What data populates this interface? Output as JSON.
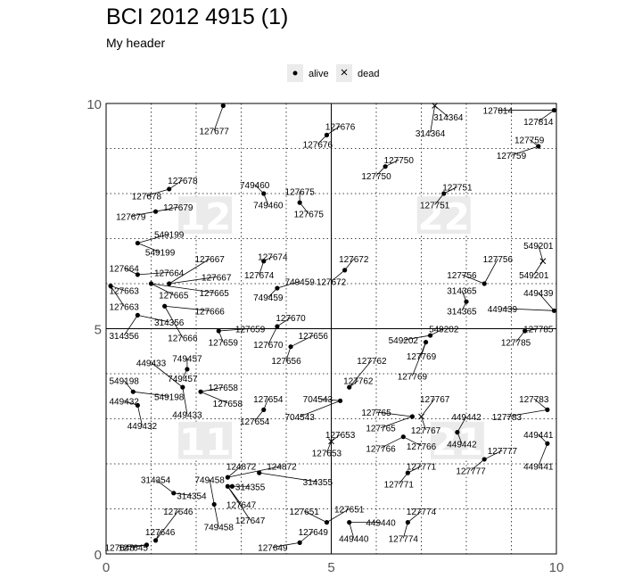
{
  "title": "BCI 2012 4915 (1)",
  "subtitle": "My header",
  "legend": [
    {
      "label": "alive",
      "symbol": "dot"
    },
    {
      "label": "dead",
      "symbol": "cross"
    }
  ],
  "chart_data": {
    "type": "scatter",
    "title": "BCI 2012 4915 (1)",
    "subtitle": "My header",
    "xlim": [
      0,
      10
    ],
    "ylim": [
      0,
      10
    ],
    "xticks": [
      "0",
      "5",
      "10"
    ],
    "yticks": [
      "0",
      "5",
      "10"
    ],
    "grid": "dotted, step 1",
    "quadrant_labels": [
      {
        "text": "12",
        "x": 2.2,
        "y": 7.5
      },
      {
        "text": "22",
        "x": 7.5,
        "y": 7.5
      },
      {
        "text": "11",
        "x": 2.2,
        "y": 2.5
      },
      {
        "text": "21",
        "x": 7.8,
        "y": 2.5
      }
    ],
    "points": [
      {
        "tag": "127677",
        "x": 2.6,
        "y": 9.95,
        "status": "alive",
        "lx": 2.4,
        "ly": 9.4
      },
      {
        "tag": "127676",
        "x": 4.9,
        "y": 9.3,
        "status": "alive",
        "lx": 5.2,
        "ly": 9.5
      },
      {
        "tag": "127676",
        "x": 4.9,
        "y": 9.3,
        "status": "alive",
        "lx": 4.7,
        "ly": 9.1
      },
      {
        "tag": "314364",
        "x": 7.3,
        "y": 9.95,
        "status": "dead",
        "lx": 7.6,
        "ly": 9.7
      },
      {
        "tag": "314364",
        "x": 7.3,
        "y": 9.95,
        "status": "dead",
        "lx": 7.2,
        "ly": 9.35
      },
      {
        "tag": "127814",
        "x": 9.95,
        "y": 9.85,
        "status": "alive",
        "lx": 8.7,
        "ly": 9.85
      },
      {
        "tag": "127814",
        "x": 9.95,
        "y": 9.85,
        "status": "alive",
        "lx": 9.6,
        "ly": 9.6
      },
      {
        "tag": "127759",
        "x": 9.6,
        "y": 9.05,
        "status": "alive",
        "lx": 9.4,
        "ly": 9.2
      },
      {
        "tag": "127759",
        "x": 9.6,
        "y": 9.05,
        "status": "alive",
        "lx": 9.0,
        "ly": 8.85
      },
      {
        "tag": "127750",
        "x": 6.2,
        "y": 8.6,
        "status": "alive",
        "lx": 6.5,
        "ly": 8.75
      },
      {
        "tag": "127750",
        "x": 6.2,
        "y": 8.6,
        "status": "alive",
        "lx": 6.0,
        "ly": 8.4
      },
      {
        "tag": "127751",
        "x": 7.5,
        "y": 8.0,
        "status": "alive",
        "lx": 7.8,
        "ly": 8.15
      },
      {
        "tag": "127751",
        "x": 7.5,
        "y": 8.0,
        "status": "alive",
        "lx": 7.3,
        "ly": 7.75
      },
      {
        "tag": "127678",
        "x": 1.4,
        "y": 8.1,
        "status": "alive",
        "lx": 1.7,
        "ly": 8.3
      },
      {
        "tag": "127678",
        "x": 1.4,
        "y": 8.1,
        "status": "alive",
        "lx": 0.9,
        "ly": 7.95
      },
      {
        "tag": "749460",
        "x": 3.5,
        "y": 8.0,
        "status": "alive",
        "lx": 3.3,
        "ly": 8.2
      },
      {
        "tag": "749460",
        "x": 3.5,
        "y": 8.0,
        "status": "alive",
        "lx": 3.6,
        "ly": 7.75
      },
      {
        "tag": "127675",
        "x": 4.3,
        "y": 7.8,
        "status": "alive",
        "lx": 4.3,
        "ly": 8.05
      },
      {
        "tag": "127675",
        "x": 4.3,
        "y": 7.8,
        "status": "alive",
        "lx": 4.5,
        "ly": 7.55
      },
      {
        "tag": "127679",
        "x": 1.1,
        "y": 7.6,
        "status": "alive",
        "lx": 1.6,
        "ly": 7.7
      },
      {
        "tag": "127679",
        "x": 1.1,
        "y": 7.6,
        "status": "alive",
        "lx": 0.55,
        "ly": 7.5
      },
      {
        "tag": "549199",
        "x": 0.7,
        "y": 6.9,
        "status": "alive",
        "lx": 1.4,
        "ly": 7.1
      },
      {
        "tag": "549199",
        "x": 0.7,
        "y": 6.9,
        "status": "alive",
        "lx": 1.2,
        "ly": 6.7
      },
      {
        "tag": "127667",
        "x": 1.4,
        "y": 6.0,
        "status": "alive",
        "lx": 2.3,
        "ly": 6.55
      },
      {
        "tag": "127667",
        "x": 1.4,
        "y": 6.0,
        "status": "alive",
        "lx": 2.45,
        "ly": 6.15
      },
      {
        "tag": "127664",
        "x": 0.7,
        "y": 6.2,
        "status": "alive",
        "lx": 0.4,
        "ly": 6.35
      },
      {
        "tag": "127664",
        "x": 0.7,
        "y": 6.2,
        "status": "alive",
        "lx": 1.4,
        "ly": 6.25
      },
      {
        "tag": "127663",
        "x": 0.1,
        "y": 5.95,
        "status": "alive",
        "lx": 0.4,
        "ly": 5.85
      },
      {
        "tag": "127663",
        "x": 0.1,
        "y": 5.95,
        "status": "alive",
        "lx": 0.4,
        "ly": 5.5
      },
      {
        "tag": "127665",
        "x": 1.0,
        "y": 6.0,
        "status": "alive",
        "lx": 1.5,
        "ly": 5.75
      },
      {
        "tag": "127665",
        "x": 1.0,
        "y": 6.0,
        "status": "alive",
        "lx": 2.4,
        "ly": 5.8
      },
      {
        "tag": "127674",
        "x": 3.5,
        "y": 6.5,
        "status": "alive",
        "lx": 3.7,
        "ly": 6.6
      },
      {
        "tag": "127674",
        "x": 3.5,
        "y": 6.5,
        "status": "alive",
        "lx": 3.4,
        "ly": 6.2
      },
      {
        "tag": "749459",
        "x": 3.8,
        "y": 5.9,
        "status": "alive",
        "lx": 4.3,
        "ly": 6.05
      },
      {
        "tag": "749459",
        "x": 3.8,
        "y": 5.9,
        "status": "alive",
        "lx": 3.6,
        "ly": 5.7
      },
      {
        "tag": "127672",
        "x": 5.3,
        "y": 6.3,
        "status": "alive",
        "lx": 5.5,
        "ly": 6.55
      },
      {
        "tag": "127672",
        "x": 5.3,
        "y": 6.3,
        "status": "alive",
        "lx": 5.0,
        "ly": 6.05
      },
      {
        "tag": "127666",
        "x": 1.3,
        "y": 5.5,
        "status": "alive",
        "lx": 2.3,
        "ly": 5.4
      },
      {
        "tag": "127666",
        "x": 1.3,
        "y": 5.5,
        "status": "alive",
        "lx": 1.7,
        "ly": 4.8
      },
      {
        "tag": "314356",
        "x": 0.7,
        "y": 5.3,
        "status": "alive",
        "lx": 1.4,
        "ly": 5.15
      },
      {
        "tag": "314356",
        "x": 0.7,
        "y": 5.3,
        "status": "alive",
        "lx": 0.4,
        "ly": 4.85
      },
      {
        "tag": "127670",
        "x": 3.8,
        "y": 5.05,
        "status": "alive",
        "lx": 4.1,
        "ly": 5.25
      },
      {
        "tag": "127670",
        "x": 3.8,
        "y": 5.05,
        "status": "alive",
        "lx": 3.6,
        "ly": 4.65
      },
      {
        "tag": "127659",
        "x": 2.5,
        "y": 4.95,
        "status": "alive",
        "lx": 3.2,
        "ly": 5.0
      },
      {
        "tag": "127659",
        "x": 2.5,
        "y": 4.95,
        "status": "alive",
        "lx": 2.6,
        "ly": 4.7
      },
      {
        "tag": "127656",
        "x": 4.1,
        "y": 4.6,
        "status": "alive",
        "lx": 4.6,
        "ly": 4.85
      },
      {
        "tag": "127656",
        "x": 4.1,
        "y": 4.6,
        "status": "alive",
        "lx": 4.0,
        "ly": 4.3
      },
      {
        "tag": "127756",
        "x": 8.4,
        "y": 6.0,
        "status": "alive",
        "lx": 8.7,
        "ly": 6.55
      },
      {
        "tag": "127756",
        "x": 8.4,
        "y": 6.0,
        "status": "alive",
        "lx": 7.9,
        "ly": 6.2
      },
      {
        "tag": "549201",
        "x": 9.7,
        "y": 6.5,
        "status": "dead",
        "lx": 9.6,
        "ly": 6.85
      },
      {
        "tag": "549201",
        "x": 9.7,
        "y": 6.5,
        "status": "dead",
        "lx": 9.5,
        "ly": 6.2
      },
      {
        "tag": "314365",
        "x": 8.0,
        "y": 5.6,
        "status": "alive",
        "lx": 7.9,
        "ly": 5.85
      },
      {
        "tag": "314365",
        "x": 8.0,
        "y": 5.6,
        "status": "alive",
        "lx": 7.9,
        "ly": 5.4
      },
      {
        "tag": "449439",
        "x": 9.95,
        "y": 5.4,
        "status": "alive",
        "lx": 9.6,
        "ly": 5.8
      },
      {
        "tag": "449439",
        "x": 9.95,
        "y": 5.4,
        "status": "alive",
        "lx": 8.8,
        "ly": 5.45
      },
      {
        "tag": "549202",
        "x": 7.2,
        "y": 4.85,
        "status": "alive",
        "lx": 7.5,
        "ly": 5.0
      },
      {
        "tag": "549202",
        "x": 7.2,
        "y": 4.85,
        "status": "alive",
        "lx": 6.6,
        "ly": 4.75
      },
      {
        "tag": "127785",
        "x": 9.3,
        "y": 4.95,
        "status": "alive",
        "lx": 9.6,
        "ly": 5.0
      },
      {
        "tag": "127785",
        "x": 9.3,
        "y": 4.95,
        "status": "alive",
        "lx": 9.1,
        "ly": 4.7
      },
      {
        "tag": "127769",
        "x": 7.1,
        "y": 4.7,
        "status": "alive",
        "lx": 7.0,
        "ly": 4.4
      },
      {
        "tag": "127769",
        "x": 7.1,
        "y": 4.7,
        "status": "alive",
        "lx": 6.8,
        "ly": 3.95
      },
      {
        "tag": "127762",
        "x": 5.4,
        "y": 3.7,
        "status": "alive",
        "lx": 5.9,
        "ly": 4.3
      },
      {
        "tag": "127762",
        "x": 5.4,
        "y": 3.7,
        "status": "alive",
        "lx": 5.6,
        "ly": 3.85
      },
      {
        "tag": "704543",
        "x": 5.2,
        "y": 3.4,
        "status": "alive",
        "lx": 4.7,
        "ly": 3.45
      },
      {
        "tag": "704543",
        "x": 5.2,
        "y": 3.4,
        "status": "alive",
        "lx": 4.3,
        "ly": 3.05
      },
      {
        "tag": "127767",
        "x": 7.0,
        "y": 3.05,
        "status": "dead",
        "lx": 7.3,
        "ly": 3.45
      },
      {
        "tag": "127767",
        "x": 7.0,
        "y": 3.05,
        "status": "dead",
        "lx": 7.1,
        "ly": 2.75
      },
      {
        "tag": "127765",
        "x": 6.8,
        "y": 3.05,
        "status": "alive",
        "lx": 6.0,
        "ly": 3.15
      },
      {
        "tag": "127765",
        "x": 6.8,
        "y": 3.05,
        "status": "alive",
        "lx": 6.1,
        "ly": 2.8
      },
      {
        "tag": "127766",
        "x": 6.6,
        "y": 2.6,
        "status": "alive",
        "lx": 6.1,
        "ly": 2.35
      },
      {
        "tag": "127766",
        "x": 6.6,
        "y": 2.6,
        "status": "alive",
        "lx": 7.0,
        "ly": 2.4
      },
      {
        "tag": "449442",
        "x": 7.8,
        "y": 2.7,
        "status": "alive",
        "lx": 8.0,
        "ly": 3.05
      },
      {
        "tag": "449442",
        "x": 7.8,
        "y": 2.7,
        "status": "alive",
        "lx": 7.9,
        "ly": 2.45
      },
      {
        "tag": "127783",
        "x": 9.8,
        "y": 3.2,
        "status": "alive",
        "lx": 9.5,
        "ly": 3.45
      },
      {
        "tag": "127783",
        "x": 9.8,
        "y": 3.2,
        "status": "alive",
        "lx": 8.9,
        "ly": 3.05
      },
      {
        "tag": "449441",
        "x": 9.8,
        "y": 2.45,
        "status": "alive",
        "lx": 9.6,
        "ly": 2.65
      },
      {
        "tag": "449441",
        "x": 9.8,
        "y": 2.45,
        "status": "alive",
        "lx": 9.6,
        "ly": 1.95
      },
      {
        "tag": "127777",
        "x": 8.4,
        "y": 2.1,
        "status": "alive",
        "lx": 8.8,
        "ly": 2.3
      },
      {
        "tag": "127777",
        "x": 8.4,
        "y": 2.1,
        "status": "alive",
        "lx": 8.1,
        "ly": 1.85
      },
      {
        "tag": "127771",
        "x": 6.7,
        "y": 1.8,
        "status": "alive",
        "lx": 7.0,
        "ly": 1.95
      },
      {
        "tag": "127771",
        "x": 6.7,
        "y": 1.8,
        "status": "alive",
        "lx": 6.5,
        "ly": 1.55
      },
      {
        "tag": "127653",
        "x": 5.0,
        "y": 2.5,
        "status": "dead",
        "lx": 5.2,
        "ly": 2.65
      },
      {
        "tag": "127653",
        "x": 5.0,
        "y": 2.5,
        "status": "dead",
        "lx": 4.9,
        "ly": 2.25
      },
      {
        "tag": "127658",
        "x": 2.1,
        "y": 3.6,
        "status": "alive",
        "lx": 2.6,
        "ly": 3.7
      },
      {
        "tag": "127658",
        "x": 2.1,
        "y": 3.6,
        "status": "alive",
        "lx": 2.7,
        "ly": 3.35
      },
      {
        "tag": "127654",
        "x": 3.5,
        "y": 3.2,
        "status": "alive",
        "lx": 3.6,
        "ly": 3.45
      },
      {
        "tag": "127654",
        "x": 3.5,
        "y": 3.2,
        "status": "alive",
        "lx": 3.3,
        "ly": 2.95
      },
      {
        "tag": "549198",
        "x": 0.6,
        "y": 3.6,
        "status": "alive",
        "lx": 0.4,
        "ly": 3.85
      },
      {
        "tag": "549198",
        "x": 0.6,
        "y": 3.6,
        "status": "alive",
        "lx": 1.4,
        "ly": 3.5
      },
      {
        "tag": "749457",
        "x": 1.8,
        "y": 4.1,
        "status": "alive",
        "lx": 1.8,
        "ly": 4.35
      },
      {
        "tag": "749457",
        "x": 1.8,
        "y": 4.1,
        "status": "alive",
        "lx": 1.7,
        "ly": 3.9
      },
      {
        "tag": "449433",
        "x": 1.7,
        "y": 3.7,
        "status": "alive",
        "lx": 1.0,
        "ly": 4.25
      },
      {
        "tag": "449433",
        "x": 1.7,
        "y": 3.7,
        "status": "alive",
        "lx": 1.8,
        "ly": 3.1
      },
      {
        "tag": "449432",
        "x": 0.7,
        "y": 3.3,
        "status": "alive",
        "lx": 0.4,
        "ly": 3.4
      },
      {
        "tag": "449432",
        "x": 0.7,
        "y": 3.3,
        "status": "alive",
        "lx": 0.8,
        "ly": 2.85
      },
      {
        "tag": "124872",
        "x": 2.7,
        "y": 1.7,
        "status": "alive",
        "lx": 3.0,
        "ly": 1.95
      },
      {
        "tag": "124872",
        "x": 2.7,
        "y": 1.7,
        "status": "alive",
        "lx": 3.9,
        "ly": 1.95
      },
      {
        "tag": "314355",
        "x": 3.4,
        "y": 1.8,
        "status": "alive",
        "lx": 4.7,
        "ly": 1.6
      },
      {
        "tag": "314355",
        "x": 2.8,
        "y": 1.5,
        "status": "alive",
        "lx": 3.2,
        "ly": 1.5
      },
      {
        "tag": "749458",
        "x": 2.4,
        "y": 1.1,
        "status": "alive",
        "lx": 2.3,
        "ly": 1.65
      },
      {
        "tag": "749458",
        "x": 2.4,
        "y": 1.1,
        "status": "alive",
        "lx": 2.5,
        "ly": 0.6
      },
      {
        "tag": "314354",
        "x": 1.5,
        "y": 1.35,
        "status": "alive",
        "lx": 1.1,
        "ly": 1.65
      },
      {
        "tag": "314354",
        "x": 1.5,
        "y": 1.35,
        "status": "alive",
        "lx": 1.9,
        "ly": 1.3
      },
      {
        "tag": "127647",
        "x": 2.7,
        "y": 1.5,
        "status": "alive",
        "lx": 3.0,
        "ly": 1.1
      },
      {
        "tag": "127647",
        "x": 2.7,
        "y": 1.5,
        "status": "alive",
        "lx": 3.2,
        "ly": 0.75
      },
      {
        "tag": "127646",
        "x": 1.1,
        "y": 0.3,
        "status": "alive",
        "lx": 1.6,
        "ly": 0.95
      },
      {
        "tag": "127646",
        "x": 1.1,
        "y": 0.3,
        "status": "alive",
        "lx": 1.2,
        "ly": 0.5
      },
      {
        "tag": "127645",
        "x": 0.9,
        "y": 0.2,
        "status": "alive",
        "lx": 0.6,
        "ly": 0.15
      },
      {
        "tag": "127648",
        "x": 0.9,
        "y": 0.2,
        "status": "alive",
        "lx": 0.3,
        "ly": 0.15
      },
      {
        "tag": "127651",
        "x": 4.9,
        "y": 0.7,
        "status": "alive",
        "lx": 4.4,
        "ly": 0.95
      },
      {
        "tag": "127651",
        "x": 4.9,
        "y": 0.7,
        "status": "alive",
        "lx": 5.4,
        "ly": 1.0
      },
      {
        "tag": "127649",
        "x": 4.3,
        "y": 0.25,
        "status": "alive",
        "lx": 4.6,
        "ly": 0.5
      },
      {
        "tag": "127649",
        "x": 4.3,
        "y": 0.25,
        "status": "alive",
        "lx": 3.7,
        "ly": 0.15
      },
      {
        "tag": "449440",
        "x": 5.4,
        "y": 0.7,
        "status": "alive",
        "lx": 6.1,
        "ly": 0.7
      },
      {
        "tag": "449440",
        "x": 5.4,
        "y": 0.7,
        "status": "alive",
        "lx": 5.5,
        "ly": 0.35
      },
      {
        "tag": "127774",
        "x": 6.7,
        "y": 0.7,
        "status": "alive",
        "lx": 7.0,
        "ly": 0.95
      },
      {
        "tag": "127774",
        "x": 6.7,
        "y": 0.7,
        "status": "alive",
        "lx": 6.6,
        "ly": 0.35
      }
    ]
  }
}
